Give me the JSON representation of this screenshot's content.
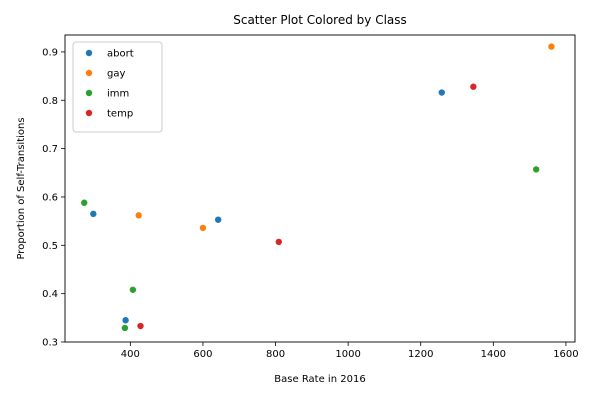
{
  "chart_data": {
    "type": "scatter",
    "title": "Scatter Plot Colored by Class",
    "xlabel": "Base Rate in 2016",
    "ylabel": "Proportion of Self-Transitions",
    "xlim": [
      220,
      1625
    ],
    "ylim": [
      0.3,
      0.935
    ],
    "xticks": [
      400,
      600,
      800,
      1000,
      1200,
      1400,
      1600
    ],
    "yticks": [
      0.3,
      0.4,
      0.5,
      0.6,
      0.7,
      0.8,
      0.9
    ],
    "grid": false,
    "legend_position": "upper-left",
    "series": [
      {
        "name": "abort",
        "color": "#1f77b4",
        "points": [
          [
            298,
            0.565
          ],
          [
            387,
            0.345
          ],
          [
            642,
            0.553
          ],
          [
            1258,
            0.816
          ]
        ]
      },
      {
        "name": "gay",
        "color": "#ff7f0e",
        "points": [
          [
            423,
            0.562
          ],
          [
            600,
            0.536
          ],
          [
            1560,
            0.911
          ]
        ]
      },
      {
        "name": "imm",
        "color": "#2ca02c",
        "points": [
          [
            273,
            0.588
          ],
          [
            385,
            0.329
          ],
          [
            407,
            0.408
          ],
          [
            1518,
            0.657
          ]
        ]
      },
      {
        "name": "temp",
        "color": "#d62728",
        "points": [
          [
            428,
            0.333
          ],
          [
            809,
            0.507
          ],
          [
            1345,
            0.828
          ]
        ]
      }
    ]
  }
}
